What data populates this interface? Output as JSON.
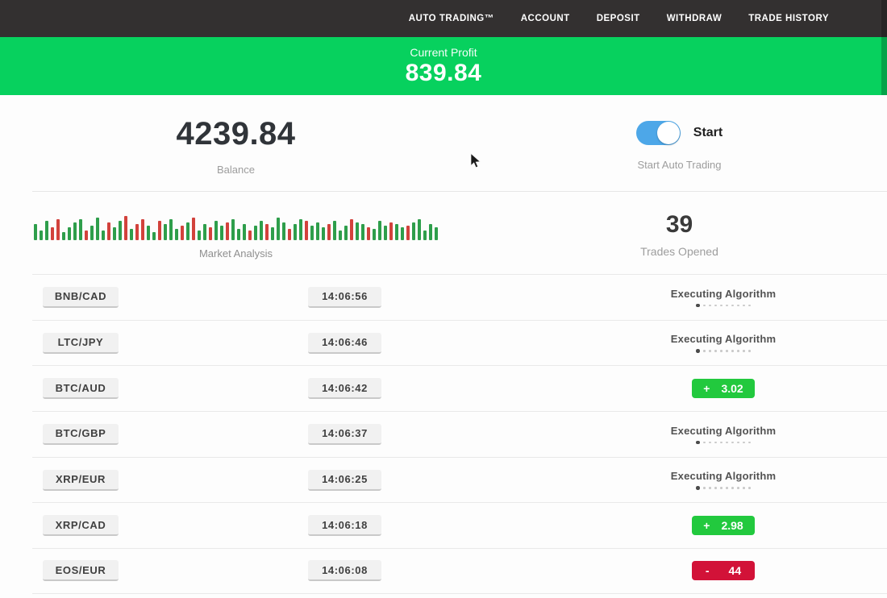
{
  "nav": {
    "items": [
      "AUTO TRADING™",
      "ACCOUNT",
      "DEPOSIT",
      "WITHDRAW",
      "TRADE HISTORY"
    ]
  },
  "banner": {
    "label": "Current Profit",
    "value": "839.84"
  },
  "stats": {
    "balance": {
      "value": "4239.84",
      "label": "Balance"
    },
    "auto_trading": {
      "toggle_label": "Start",
      "sublabel": "Start Auto Trading",
      "state": "on"
    },
    "market_analysis": {
      "label": "Market Analysis"
    },
    "trades_opened": {
      "value": "39",
      "label": "Trades Opened"
    }
  },
  "executing_dots": 10,
  "chart_data": {
    "type": "bar",
    "title": "Market Analysis",
    "note": "decorative candlestick-style strip; values are bar heights in px, color g=green r=red",
    "bars": [
      [
        20,
        "g"
      ],
      [
        12,
        "g"
      ],
      [
        24,
        "g"
      ],
      [
        16,
        "r"
      ],
      [
        26,
        "r"
      ],
      [
        10,
        "g"
      ],
      [
        16,
        "g"
      ],
      [
        22,
        "g"
      ],
      [
        26,
        "g"
      ],
      [
        12,
        "r"
      ],
      [
        18,
        "g"
      ],
      [
        28,
        "g"
      ],
      [
        12,
        "g"
      ],
      [
        22,
        "r"
      ],
      [
        16,
        "g"
      ],
      [
        24,
        "g"
      ],
      [
        30,
        "r"
      ],
      [
        14,
        "g"
      ],
      [
        20,
        "r"
      ],
      [
        26,
        "r"
      ],
      [
        18,
        "g"
      ],
      [
        10,
        "g"
      ],
      [
        24,
        "r"
      ],
      [
        20,
        "g"
      ],
      [
        26,
        "g"
      ],
      [
        14,
        "g"
      ],
      [
        18,
        "r"
      ],
      [
        22,
        "g"
      ],
      [
        28,
        "r"
      ],
      [
        12,
        "g"
      ],
      [
        20,
        "g"
      ],
      [
        16,
        "r"
      ],
      [
        24,
        "g"
      ],
      [
        18,
        "g"
      ],
      [
        22,
        "r"
      ],
      [
        26,
        "g"
      ],
      [
        14,
        "g"
      ],
      [
        20,
        "g"
      ],
      [
        12,
        "r"
      ],
      [
        18,
        "g"
      ],
      [
        24,
        "g"
      ],
      [
        20,
        "r"
      ],
      [
        16,
        "g"
      ],
      [
        28,
        "g"
      ],
      [
        22,
        "g"
      ],
      [
        14,
        "r"
      ],
      [
        20,
        "g"
      ],
      [
        26,
        "g"
      ],
      [
        24,
        "r"
      ],
      [
        18,
        "g"
      ],
      [
        22,
        "g"
      ],
      [
        16,
        "g"
      ],
      [
        20,
        "r"
      ],
      [
        24,
        "g"
      ],
      [
        12,
        "g"
      ],
      [
        18,
        "g"
      ],
      [
        26,
        "r"
      ],
      [
        22,
        "g"
      ],
      [
        20,
        "g"
      ],
      [
        16,
        "r"
      ],
      [
        14,
        "g"
      ],
      [
        24,
        "g"
      ],
      [
        18,
        "g"
      ],
      [
        22,
        "r"
      ],
      [
        20,
        "g"
      ],
      [
        16,
        "g"
      ],
      [
        18,
        "r"
      ],
      [
        22,
        "g"
      ],
      [
        26,
        "g"
      ],
      [
        12,
        "g"
      ],
      [
        20,
        "g"
      ],
      [
        16,
        "g"
      ]
    ]
  },
  "trades": [
    {
      "pair": "BNB/CAD",
      "time": "14:06:56",
      "status": "executing",
      "status_label": "Executing Algorithm"
    },
    {
      "pair": "LTC/JPY",
      "time": "14:06:46",
      "status": "executing",
      "status_label": "Executing Algorithm"
    },
    {
      "pair": "BTC/AUD",
      "time": "14:06:42",
      "status": "profit",
      "sign": "+",
      "amount": "3.02"
    },
    {
      "pair": "BTC/GBP",
      "time": "14:06:37",
      "status": "executing",
      "status_label": "Executing Algorithm"
    },
    {
      "pair": "XRP/EUR",
      "time": "14:06:25",
      "status": "executing",
      "status_label": "Executing Algorithm"
    },
    {
      "pair": "XRP/CAD",
      "time": "14:06:18",
      "status": "profit",
      "sign": "+",
      "amount": "2.98"
    },
    {
      "pair": "EOS/EUR",
      "time": "14:06:08",
      "status": "loss",
      "sign": "-",
      "amount": "44"
    }
  ],
  "colors": {
    "nav_bg": "#333030",
    "banner_green": "#07d15e",
    "toggle_blue": "#4da7e8",
    "badge_green": "#22c93e",
    "badge_red": "#d21238",
    "bar_green": "#2e9e4b",
    "bar_red": "#d2423c"
  }
}
